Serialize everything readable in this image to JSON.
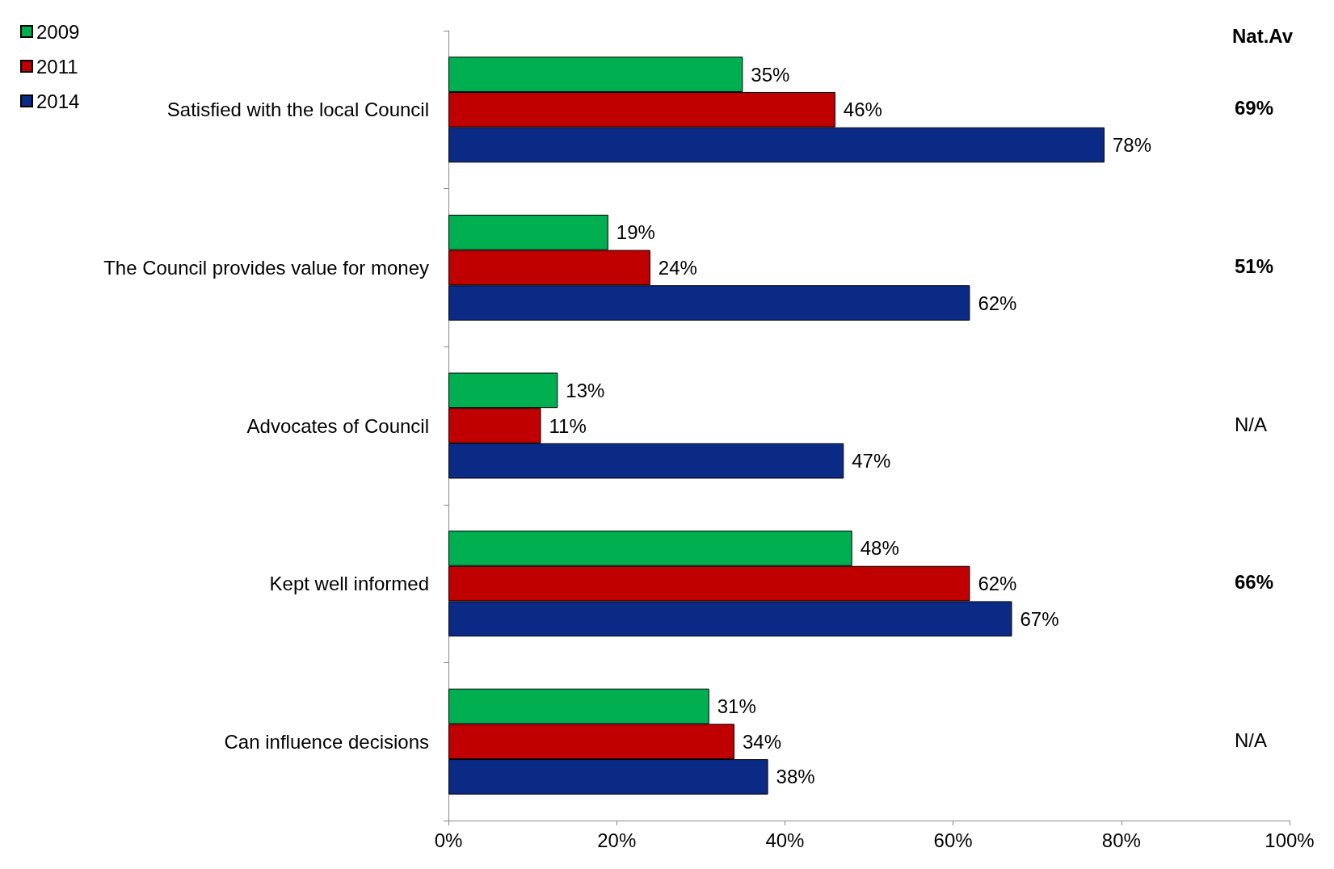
{
  "chart_data": {
    "type": "bar",
    "orientation": "horizontal",
    "categories": [
      "Satisfied with the local Council",
      "The Council provides value for money",
      "Advocates of Council",
      "Kept well informed",
      "Can influence decisions"
    ],
    "series": [
      {
        "name": "2009",
        "color": "#00b050",
        "values": [
          35,
          19,
          13,
          48,
          31
        ],
        "value_labels": [
          "35%",
          "19%",
          "13%",
          "48%",
          "31%"
        ]
      },
      {
        "name": "2011",
        "color": "#c00000",
        "values": [
          46,
          24,
          11,
          62,
          34
        ],
        "value_labels": [
          "46%",
          "24%",
          "11%",
          "62%",
          "34%"
        ]
      },
      {
        "name": "2014",
        "color": "#0b2a85",
        "values": [
          78,
          62,
          47,
          67,
          38
        ],
        "value_labels": [
          "78%",
          "62%",
          "47%",
          "67%",
          "38%"
        ]
      }
    ],
    "xlim": [
      0,
      100
    ],
    "xticks": [
      {
        "value": 0,
        "label": "0%"
      },
      {
        "value": 20,
        "label": "20%"
      },
      {
        "value": 40,
        "label": "40%"
      },
      {
        "value": 60,
        "label": "60%"
      },
      {
        "value": 80,
        "label": "80%"
      },
      {
        "value": 100,
        "label": "100%"
      }
    ],
    "annotations": [
      "Nat.Av",
      "69%",
      "51%",
      "N/A",
      "66%",
      "N/A"
    ],
    "legend": "top left",
    "grid": false
  }
}
